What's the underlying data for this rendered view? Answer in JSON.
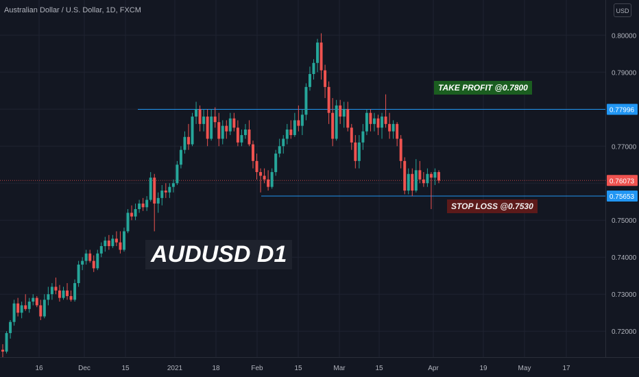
{
  "header": {
    "title": "Australian Dollar / U.S. Dollar, 1D, FXCM",
    "currency_label": "USD"
  },
  "overlay": {
    "title": "AUDUSD D1",
    "take_profit_label": "TAKE PROFIT @0.7800",
    "stop_loss_label": "STOP LOSS @0.7530"
  },
  "colors": {
    "background": "#131722",
    "grid": "#1f2331",
    "axis_text": "#b2b5be",
    "bull": "#26a69a",
    "bear": "#ef5350",
    "level_line": "#2196f3",
    "last_price": "#ef5350",
    "take_profit_bg": "#1b5e20",
    "stop_loss_bg": "#5c1a1a"
  },
  "chart_data": {
    "type": "candlestick",
    "symbol": "AUDUSD",
    "timeframe": "1D",
    "y_ticks": [
      "0.80000",
      "0.79000",
      "0.78000",
      "0.77000",
      "0.76000",
      "0.75000",
      "0.74000",
      "0.73000",
      "0.72000"
    ],
    "x_ticks": [
      "16",
      "Dec",
      "15",
      "2021",
      "18",
      "Feb",
      "15",
      "Mar",
      "15",
      "Apr",
      "19",
      "May",
      "17"
    ],
    "ylim": [
      0.713,
      0.8095
    ],
    "horizontal_levels": [
      {
        "price": 0.77996,
        "label": "0.77996"
      },
      {
        "price": 0.75653,
        "label": "0.75653"
      }
    ],
    "last_price": {
      "price": 0.76073,
      "label": "0.76073"
    },
    "ohlc": [
      [
        0.715,
        0.7165,
        0.713,
        0.7145
      ],
      [
        0.7145,
        0.72,
        0.714,
        0.7195
      ],
      [
        0.7195,
        0.723,
        0.718,
        0.7225
      ],
      [
        0.7225,
        0.7285,
        0.7215,
        0.7275
      ],
      [
        0.7275,
        0.729,
        0.724,
        0.725
      ],
      [
        0.725,
        0.728,
        0.7235,
        0.727
      ],
      [
        0.727,
        0.73,
        0.7255,
        0.726
      ],
      [
        0.726,
        0.729,
        0.725,
        0.728
      ],
      [
        0.728,
        0.73,
        0.727,
        0.729
      ],
      [
        0.729,
        0.7295,
        0.7265,
        0.727
      ],
      [
        0.727,
        0.7285,
        0.723,
        0.724
      ],
      [
        0.724,
        0.73,
        0.7235,
        0.7285
      ],
      [
        0.7285,
        0.732,
        0.727,
        0.73
      ],
      [
        0.73,
        0.733,
        0.7285,
        0.732
      ],
      [
        0.732,
        0.7345,
        0.73,
        0.731
      ],
      [
        0.731,
        0.7325,
        0.728,
        0.729
      ],
      [
        0.729,
        0.732,
        0.7285,
        0.731
      ],
      [
        0.731,
        0.733,
        0.7285,
        0.7295
      ],
      [
        0.7295,
        0.731,
        0.728,
        0.7285
      ],
      [
        0.7285,
        0.734,
        0.728,
        0.733
      ],
      [
        0.733,
        0.739,
        0.732,
        0.738
      ],
      [
        0.738,
        0.74,
        0.7365,
        0.739
      ],
      [
        0.739,
        0.742,
        0.738,
        0.741
      ],
      [
        0.741,
        0.742,
        0.7385,
        0.739
      ],
      [
        0.739,
        0.7405,
        0.736,
        0.737
      ],
      [
        0.737,
        0.742,
        0.7365,
        0.741
      ],
      [
        0.741,
        0.744,
        0.74,
        0.743
      ],
      [
        0.743,
        0.7455,
        0.7415,
        0.7445
      ],
      [
        0.7445,
        0.746,
        0.742,
        0.743
      ],
      [
        0.743,
        0.746,
        0.7425,
        0.745
      ],
      [
        0.745,
        0.747,
        0.743,
        0.744
      ],
      [
        0.744,
        0.747,
        0.741,
        0.742
      ],
      [
        0.742,
        0.748,
        0.7415,
        0.747
      ],
      [
        0.747,
        0.753,
        0.7465,
        0.752
      ],
      [
        0.752,
        0.754,
        0.75,
        0.751
      ],
      [
        0.751,
        0.7545,
        0.75,
        0.753
      ],
      [
        0.753,
        0.7555,
        0.752,
        0.7545
      ],
      [
        0.7545,
        0.756,
        0.7525,
        0.7535
      ],
      [
        0.7535,
        0.7565,
        0.7525,
        0.7555
      ],
      [
        0.7555,
        0.763,
        0.755,
        0.7615
      ],
      [
        0.7615,
        0.7625,
        0.747,
        0.7545
      ],
      [
        0.7545,
        0.7575,
        0.752,
        0.756
      ],
      [
        0.756,
        0.7595,
        0.754,
        0.758
      ],
      [
        0.758,
        0.76,
        0.756,
        0.7575
      ],
      [
        0.7575,
        0.76,
        0.756,
        0.759
      ],
      [
        0.759,
        0.761,
        0.7575,
        0.76
      ],
      [
        0.76,
        0.766,
        0.7595,
        0.765
      ],
      [
        0.765,
        0.77,
        0.764,
        0.769
      ],
      [
        0.769,
        0.774,
        0.768,
        0.7725
      ],
      [
        0.7725,
        0.776,
        0.769,
        0.7705
      ],
      [
        0.7705,
        0.779,
        0.77,
        0.778
      ],
      [
        0.778,
        0.782,
        0.776,
        0.78
      ],
      [
        0.78,
        0.781,
        0.774,
        0.776
      ],
      [
        0.776,
        0.78,
        0.774,
        0.778
      ],
      [
        0.778,
        0.78,
        0.77,
        0.772
      ],
      [
        0.772,
        0.78,
        0.7715,
        0.778
      ],
      [
        0.778,
        0.7805,
        0.775,
        0.7765
      ],
      [
        0.7765,
        0.779,
        0.77,
        0.772
      ],
      [
        0.772,
        0.777,
        0.7705,
        0.7755
      ],
      [
        0.7755,
        0.777,
        0.772,
        0.774
      ],
      [
        0.774,
        0.779,
        0.773,
        0.7775
      ],
      [
        0.7775,
        0.779,
        0.774,
        0.775
      ],
      [
        0.775,
        0.777,
        0.77,
        0.771
      ],
      [
        0.771,
        0.7745,
        0.77,
        0.773
      ],
      [
        0.773,
        0.776,
        0.772,
        0.7745
      ],
      [
        0.7745,
        0.777,
        0.77,
        0.7705
      ],
      [
        0.7705,
        0.7715,
        0.764,
        0.766
      ],
      [
        0.766,
        0.768,
        0.761,
        0.763
      ],
      [
        0.763,
        0.764,
        0.7575,
        0.762
      ],
      [
        0.762,
        0.764,
        0.76,
        0.761
      ],
      [
        0.761,
        0.7635,
        0.758,
        0.759
      ],
      [
        0.759,
        0.764,
        0.7585,
        0.763
      ],
      [
        0.763,
        0.769,
        0.762,
        0.768
      ],
      [
        0.768,
        0.772,
        0.767,
        0.77
      ],
      [
        0.77,
        0.773,
        0.768,
        0.772
      ],
      [
        0.772,
        0.776,
        0.7705,
        0.7745
      ],
      [
        0.7745,
        0.777,
        0.772,
        0.773
      ],
      [
        0.773,
        0.779,
        0.7725,
        0.777
      ],
      [
        0.777,
        0.781,
        0.774,
        0.7755
      ],
      [
        0.7755,
        0.78,
        0.773,
        0.7785
      ],
      [
        0.7785,
        0.787,
        0.777,
        0.786
      ],
      [
        0.786,
        0.7915,
        0.785,
        0.7895
      ],
      [
        0.7895,
        0.7935,
        0.788,
        0.7925
      ],
      [
        0.7925,
        0.799,
        0.79,
        0.798
      ],
      [
        0.798,
        0.8005,
        0.788,
        0.7905
      ],
      [
        0.7905,
        0.792,
        0.783,
        0.786
      ],
      [
        0.786,
        0.7875,
        0.776,
        0.779
      ],
      [
        0.779,
        0.783,
        0.77,
        0.772
      ],
      [
        0.772,
        0.7825,
        0.7715,
        0.781
      ],
      [
        0.781,
        0.7825,
        0.776,
        0.778
      ],
      [
        0.778,
        0.782,
        0.775,
        0.78
      ],
      [
        0.78,
        0.782,
        0.774,
        0.775
      ],
      [
        0.775,
        0.776,
        0.769,
        0.771
      ],
      [
        0.771,
        0.773,
        0.764,
        0.766
      ],
      [
        0.766,
        0.773,
        0.764,
        0.771
      ],
      [
        0.771,
        0.776,
        0.769,
        0.774
      ],
      [
        0.774,
        0.78,
        0.773,
        0.779
      ],
      [
        0.779,
        0.78,
        0.774,
        0.776
      ],
      [
        0.776,
        0.779,
        0.774,
        0.7775
      ],
      [
        0.7775,
        0.7785,
        0.773,
        0.775
      ],
      [
        0.775,
        0.779,
        0.772,
        0.778
      ],
      [
        0.778,
        0.784,
        0.775,
        0.776
      ],
      [
        0.776,
        0.779,
        0.772,
        0.774
      ],
      [
        0.774,
        0.777,
        0.772,
        0.776
      ],
      [
        0.776,
        0.7765,
        0.77,
        0.772
      ],
      [
        0.772,
        0.773,
        0.764,
        0.766
      ],
      [
        0.766,
        0.767,
        0.757,
        0.758
      ],
      [
        0.758,
        0.764,
        0.757,
        0.7625
      ],
      [
        0.7625,
        0.764,
        0.7565,
        0.758
      ],
      [
        0.758,
        0.7665,
        0.7575,
        0.7635
      ],
      [
        0.7635,
        0.766,
        0.76,
        0.761
      ],
      [
        0.761,
        0.763,
        0.759,
        0.76
      ],
      [
        0.76,
        0.764,
        0.759,
        0.7625
      ],
      [
        0.7625,
        0.763,
        0.753,
        0.7615
      ],
      [
        0.7615,
        0.764,
        0.7595,
        0.763
      ],
      [
        0.763,
        0.7635,
        0.76,
        0.7607
      ]
    ]
  }
}
